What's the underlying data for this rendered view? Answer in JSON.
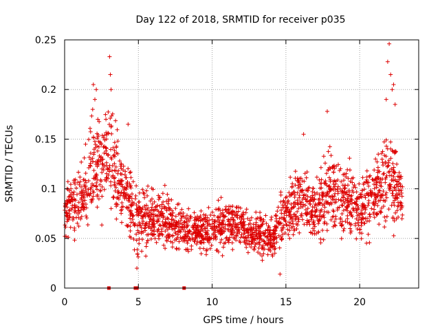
{
  "chart_data": {
    "type": "scatter",
    "title": "Day 122 of 2018, SRMTID for receiver p035",
    "xlabel": "GPS time / hours",
    "ylabel": "SRMTID / TECUs",
    "xlim": [
      0,
      24
    ],
    "ylim": [
      0,
      0.25
    ],
    "x_ticks": [
      0,
      5,
      10,
      15,
      20
    ],
    "x_tick_labels": [
      "0",
      "5",
      "10",
      "15",
      "20"
    ],
    "y_ticks": [
      0,
      0.05,
      0.1,
      0.15,
      0.2,
      0.25
    ],
    "y_tick_labels": [
      "0",
      "0.05",
      "0.1",
      "0.15",
      "0.2",
      "0.25"
    ],
    "grid": true,
    "marker": "+",
    "color": "#dd0000",
    "series": [
      {
        "name": "SRMTID",
        "envelope": [
          {
            "x": 0.0,
            "lo": 0.04,
            "hi": 0.13
          },
          {
            "x": 1.0,
            "lo": 0.05,
            "hi": 0.14
          },
          {
            "x": 2.0,
            "lo": 0.05,
            "hi": 0.2
          },
          {
            "x": 3.0,
            "lo": 0.06,
            "hi": 0.23
          },
          {
            "x": 4.0,
            "lo": 0.05,
            "hi": 0.16
          },
          {
            "x": 5.0,
            "lo": 0.02,
            "hi": 0.13
          },
          {
            "x": 6.0,
            "lo": 0.03,
            "hi": 0.12
          },
          {
            "x": 7.0,
            "lo": 0.03,
            "hi": 0.11
          },
          {
            "x": 8.0,
            "lo": 0.03,
            "hi": 0.1
          },
          {
            "x": 9.0,
            "lo": 0.03,
            "hi": 0.09
          },
          {
            "x": 10.0,
            "lo": 0.03,
            "hi": 0.1
          },
          {
            "x": 11.0,
            "lo": 0.03,
            "hi": 0.11
          },
          {
            "x": 12.0,
            "lo": 0.03,
            "hi": 0.1
          },
          {
            "x": 13.0,
            "lo": 0.03,
            "hi": 0.09
          },
          {
            "x": 14.0,
            "lo": 0.02,
            "hi": 0.09
          },
          {
            "x": 15.0,
            "lo": 0.03,
            "hi": 0.13
          },
          {
            "x": 16.0,
            "lo": 0.04,
            "hi": 0.15
          },
          {
            "x": 17.0,
            "lo": 0.03,
            "hi": 0.13
          },
          {
            "x": 18.0,
            "lo": 0.04,
            "hi": 0.17
          },
          {
            "x": 19.0,
            "lo": 0.04,
            "hi": 0.15
          },
          {
            "x": 20.0,
            "lo": 0.04,
            "hi": 0.12
          },
          {
            "x": 21.0,
            "lo": 0.04,
            "hi": 0.16
          },
          {
            "x": 22.0,
            "lo": 0.05,
            "hi": 0.2
          },
          {
            "x": 22.9,
            "lo": 0.05,
            "hi": 0.14
          }
        ],
        "highlights": [
          {
            "x": 1.95,
            "y": 0.205
          },
          {
            "x": 2.05,
            "y": 0.19
          },
          {
            "x": 2.15,
            "y": 0.2
          },
          {
            "x": 1.9,
            "y": 0.18
          },
          {
            "x": 2.25,
            "y": 0.17
          },
          {
            "x": 3.05,
            "y": 0.233
          },
          {
            "x": 3.1,
            "y": 0.215
          },
          {
            "x": 3.15,
            "y": 0.2
          },
          {
            "x": 2.8,
            "y": 0.17
          },
          {
            "x": 4.3,
            "y": 0.165
          },
          {
            "x": 17.8,
            "y": 0.178
          },
          {
            "x": 16.2,
            "y": 0.155
          },
          {
            "x": 22.0,
            "y": 0.246
          },
          {
            "x": 21.9,
            "y": 0.228
          },
          {
            "x": 22.1,
            "y": 0.215
          },
          {
            "x": 22.3,
            "y": 0.205
          },
          {
            "x": 22.2,
            "y": 0.2
          },
          {
            "x": 21.8,
            "y": 0.19
          },
          {
            "x": 22.4,
            "y": 0.185
          },
          {
            "x": 4.9,
            "y": 0.02
          },
          {
            "x": 14.6,
            "y": 0.014
          },
          {
            "x": 13.4,
            "y": 0.028
          }
        ],
        "axis_markers": [
          3.0,
          4.8,
          4.9,
          8.1
        ]
      }
    ]
  }
}
